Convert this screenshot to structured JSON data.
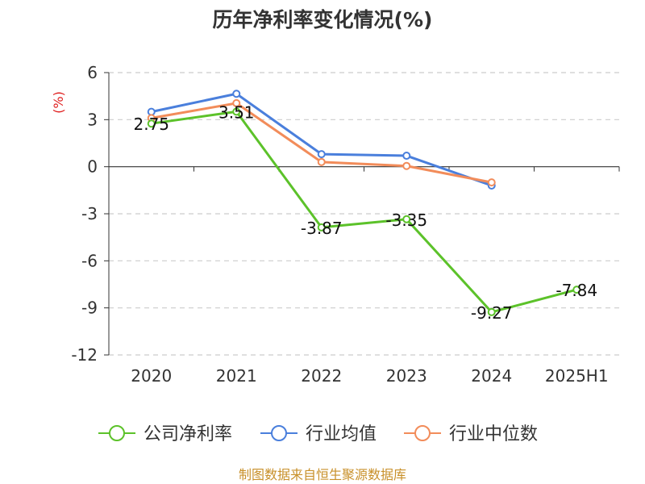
{
  "chart_data": {
    "type": "line",
    "title": "历年净利率变化情况(%)",
    "ylabel": "(%)",
    "categories": [
      "2020",
      "2021",
      "2022",
      "2023",
      "2024",
      "2025H1"
    ],
    "ylim": [
      -12,
      6
    ],
    "yticks": [
      "6",
      "3",
      "0",
      "-3",
      "-6",
      "-9",
      "-12"
    ],
    "grid": true,
    "legend_position": "bottom",
    "series": [
      {
        "name": "公司净利率",
        "color": "#5cc22a",
        "values": [
          2.75,
          3.51,
          -3.87,
          -3.35,
          -9.27,
          -7.84
        ],
        "labels": [
          "2.75",
          "3.51",
          "-3.87",
          "-3.35",
          "-9.27",
          "-7.84"
        ]
      },
      {
        "name": "行业均值",
        "color": "#4a7fdc",
        "values": [
          3.5,
          4.65,
          0.8,
          0.7,
          -1.2,
          null
        ]
      },
      {
        "name": "行业中位数",
        "color": "#f28c5a",
        "values": [
          3.1,
          4.05,
          0.3,
          0.05,
          -1.0,
          null
        ]
      }
    ]
  },
  "source_text": "制图数据来自恒生聚源数据库"
}
